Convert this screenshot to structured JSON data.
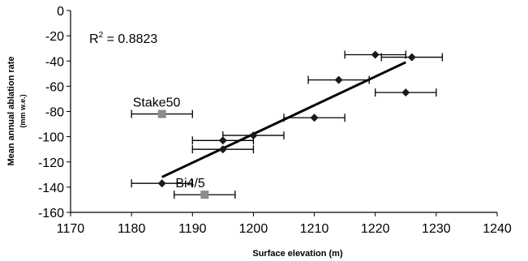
{
  "chart_data": {
    "type": "scatter",
    "xlabel": "Surface elevation (m)",
    "ylabel": "Mean annual ablation rate",
    "ylabel_unit": "(mm w.e.)",
    "xlim": [
      1170,
      1240
    ],
    "ylim": [
      -160,
      0
    ],
    "x_ticks": [
      "1170",
      "1180",
      "1190",
      "1200",
      "1210",
      "1220",
      "1230",
      "1240"
    ],
    "y_ticks": [
      "0",
      "-20",
      "-40",
      "-60",
      "-80",
      "-100",
      "-120",
      "-140",
      "-160"
    ],
    "grid": false,
    "annotation": {
      "base": "R",
      "sup": "2",
      "rest": " = 0.8823"
    },
    "series": [
      {
        "marker": "diamond",
        "color": "#1a1a1a",
        "points": [
          {
            "x": 1185,
            "y": -137,
            "xerr": 5
          },
          {
            "x": 1195,
            "y": -103,
            "xerr": 5
          },
          {
            "x": 1195,
            "y": -110,
            "xerr": 5
          },
          {
            "x": 1200,
            "y": -99,
            "xerr": 5
          },
          {
            "x": 1210,
            "y": -85,
            "xerr": 5
          },
          {
            "x": 1214,
            "y": -55,
            "xerr": 5
          },
          {
            "x": 1220,
            "y": -35,
            "xerr": 5
          },
          {
            "x": 1226,
            "y": -37,
            "xerr": 5
          },
          {
            "x": 1225,
            "y": -65,
            "xerr": 5
          }
        ]
      },
      {
        "marker": "square",
        "color": "#8c8c8c",
        "points": [
          {
            "x": 1185,
            "y": -82,
            "xerr": 5,
            "label": "Stake50"
          },
          {
            "x": 1192,
            "y": -146,
            "xerr": 5,
            "label": "Bi4/5"
          }
        ]
      }
    ],
    "trendline": {
      "x": [
        1185,
        1225
      ],
      "y": [
        -132,
        -41
      ]
    }
  }
}
